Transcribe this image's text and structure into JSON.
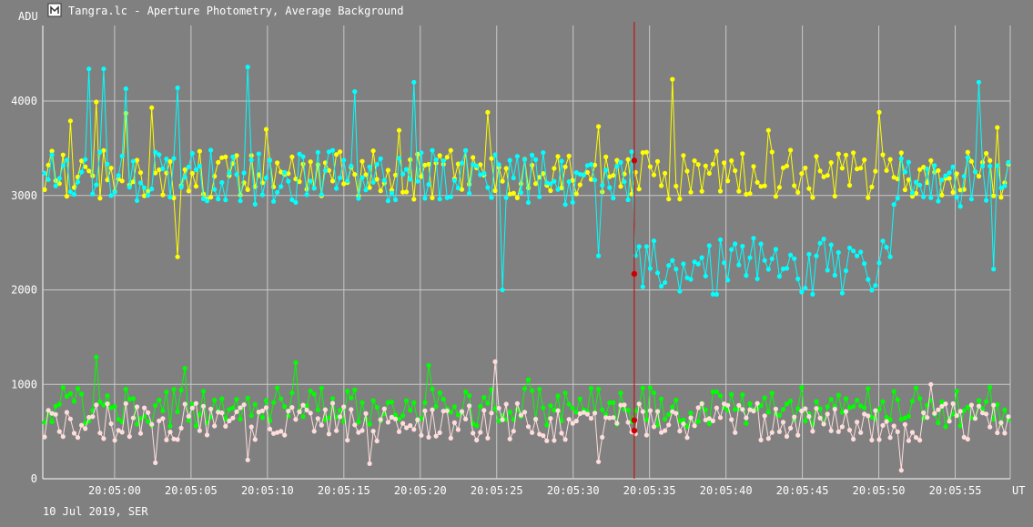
{
  "window": {
    "title": "Tangra.lc - Aperture Photometry, Average Background",
    "icon": "tangra-app-icon"
  },
  "colors": {
    "background": "#808080",
    "grid": "#c8c8c8",
    "text": "#ffffff",
    "cursor": "#cc0000"
  },
  "chart_data": {
    "type": "line",
    "ylabel": "ADU",
    "xlabel": "UT",
    "date_label": "10 Jul 2019, SER",
    "ylim": [
      0,
      4800
    ],
    "yticks": [
      0,
      1000,
      2000,
      3000,
      4000
    ],
    "xlim": [
      "20:04:55.3",
      "20:05:58.6"
    ],
    "xticks": [
      "20:05:00",
      "20:05:05",
      "20:05:10",
      "20:05:15",
      "20:05:20",
      "20:05:25",
      "20:05:30",
      "20:05:35",
      "20:05:40",
      "20:05:45",
      "20:05:50",
      "20:05:55"
    ],
    "grid": true,
    "cursor_time": "20:05:34.0",
    "cursor_values": [
      3370,
      2170,
      620,
      510
    ],
    "series": [
      {
        "color": "#ffff00",
        "mean": 3220,
        "spread": 260,
        "spikes": [
          [
            7,
            3790
          ],
          [
            14,
            3990
          ],
          [
            22,
            3870
          ],
          [
            29,
            3930
          ],
          [
            36,
            2350
          ],
          [
            60,
            3700
          ],
          [
            96,
            3690
          ],
          [
            120,
            3880
          ],
          [
            150,
            3730
          ],
          [
            170,
            4230
          ],
          [
            196,
            3690
          ],
          [
            226,
            3880
          ],
          [
            258,
            3720
          ]
        ],
        "change_time": null,
        "change_to": null
      },
      {
        "color": "#00ffff",
        "mean": 3180,
        "spread": 300,
        "spikes": [
          [
            12,
            4340
          ],
          [
            16,
            4340
          ],
          [
            22,
            4130
          ],
          [
            36,
            4140
          ],
          [
            55,
            4360
          ],
          [
            84,
            4100
          ],
          [
            100,
            4200
          ],
          [
            124,
            2000
          ],
          [
            150,
            2360
          ],
          [
            253,
            4200
          ],
          [
            257,
            2220
          ]
        ],
        "change_time": "20:05:34.0",
        "change_to": 2250
      },
      {
        "color": "#00ff00",
        "mean": 760,
        "spread": 210,
        "spikes": [
          [
            14,
            1290
          ],
          [
            38,
            1170
          ],
          [
            68,
            1230
          ],
          [
            104,
            1200
          ],
          [
            131,
            1050
          ]
        ],
        "change_time": null,
        "change_to": null
      },
      {
        "color": "#ffdddd",
        "mean": 600,
        "spread": 200,
        "spikes": [
          [
            30,
            170
          ],
          [
            55,
            200
          ],
          [
            88,
            160
          ],
          [
            122,
            1240
          ],
          [
            150,
            180
          ],
          [
            232,
            90
          ],
          [
            240,
            1000
          ]
        ],
        "change_time": null,
        "change_to": null
      }
    ]
  }
}
